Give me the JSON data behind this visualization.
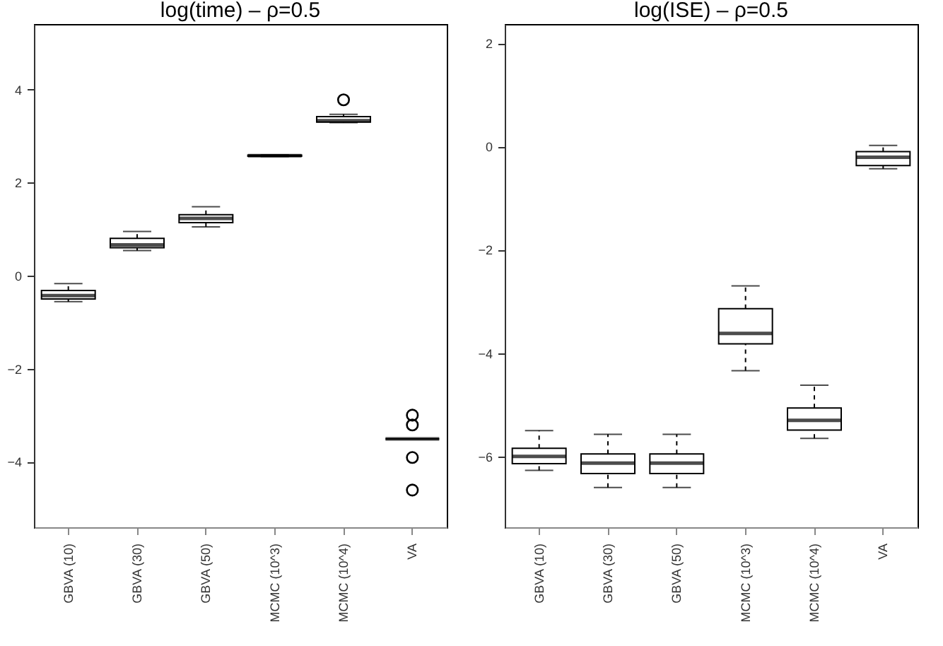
{
  "chart_data": [
    {
      "type": "box",
      "title": "log(time) – ρ=0.5",
      "categories": [
        "GBVA (10)",
        "GBVA (30)",
        "GBVA (50)",
        "MCMC (10^3)",
        "MCMC (10^4)",
        "VA"
      ],
      "boxes": [
        {
          "low": -0.56,
          "q1": -0.5,
          "median": -0.43,
          "q3": -0.32,
          "high": -0.17
        },
        {
          "low": 0.54,
          "q1": 0.6,
          "median": 0.66,
          "q3": 0.8,
          "high": 0.95
        },
        {
          "low": 1.05,
          "q1": 1.14,
          "median": 1.23,
          "q3": 1.31,
          "high": 1.48
        },
        {
          "low": 2.56,
          "q1": 2.57,
          "median": 2.58,
          "q3": 2.59,
          "high": 2.6
        },
        {
          "low": 3.29,
          "q1": 3.3,
          "median": 3.33,
          "q3": 3.42,
          "high": 3.47,
          "outliers": [
            3.78
          ]
        },
        {
          "low": -3.51,
          "q1": -3.51,
          "median": -3.51,
          "q3": -3.51,
          "high": -3.51,
          "outliers": [
            -3.0,
            -3.21,
            -3.91,
            -4.61
          ]
        }
      ],
      "ylim": [
        -5.41,
        5.41
      ],
      "yticks": [
        -4,
        -2,
        0,
        2,
        4
      ],
      "grid": false
    },
    {
      "type": "box",
      "title": "log(ISE) – ρ=0.5",
      "categories": [
        "GBVA (10)",
        "GBVA (30)",
        "GBVA (50)",
        "MCMC (10^3)",
        "MCMC (10^4)",
        "VA"
      ],
      "boxes": [
        {
          "low": -6.27,
          "q1": -6.14,
          "median": -6.0,
          "q3": -5.84,
          "high": -5.5
        },
        {
          "low": -6.6,
          "q1": -6.33,
          "median": -6.13,
          "q3": -5.95,
          "high": -5.57
        },
        {
          "low": -6.6,
          "q1": -6.33,
          "median": -6.13,
          "q3": -5.95,
          "high": -5.57
        },
        {
          "low": -4.34,
          "q1": -3.82,
          "median": -3.62,
          "q3": -3.14,
          "high": -2.7
        },
        {
          "low": -5.65,
          "q1": -5.49,
          "median": -5.3,
          "q3": -5.06,
          "high": -4.62
        },
        {
          "low": -0.43,
          "q1": -0.37,
          "median": -0.21,
          "q3": -0.1,
          "high": 0.02
        }
      ],
      "ylim": [
        -7.37,
        2.37
      ],
      "yticks": [
        -6,
        -4,
        -2,
        0,
        2
      ],
      "grid": false
    }
  ]
}
